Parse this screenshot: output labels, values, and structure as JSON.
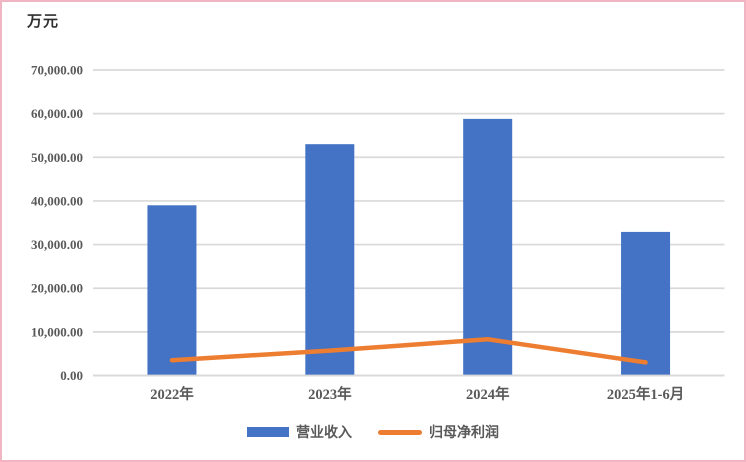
{
  "frame": {
    "background": "#ffffff",
    "border_color": "#f0b4c2"
  },
  "chart_data": {
    "type": "combo",
    "unit_label": "万元",
    "categories": [
      "2022年",
      "2023年",
      "2024年",
      "2025年1-6月"
    ],
    "series": [
      {
        "name": "营业收入",
        "type": "bar",
        "color": "#4472C4",
        "values": [
          39000,
          53000,
          58800,
          32900
        ]
      },
      {
        "name": "归母净利润",
        "type": "line",
        "color": "#ED7D31",
        "values": [
          3500,
          5700,
          8300,
          3000
        ]
      }
    ],
    "ylim": [
      0,
      70000
    ],
    "ytick_step": 10000,
    "ytick_labels": [
      "0.00",
      "10,000.00",
      "20,000.00",
      "30,000.00",
      "40,000.00",
      "50,000.00",
      "60,000.00",
      "70,000.00"
    ],
    "grid": true,
    "gridline_color": "#d9d9d9",
    "text_color": "#595959",
    "legend_position": "bottom"
  }
}
